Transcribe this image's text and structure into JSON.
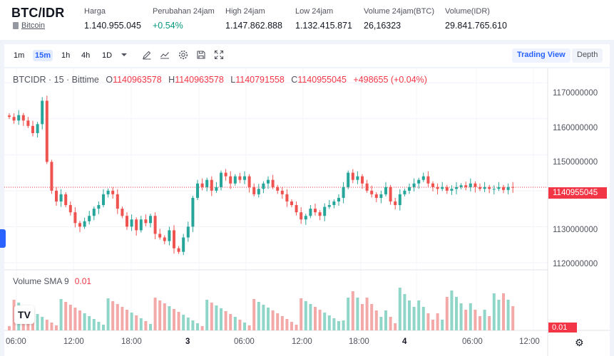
{
  "ticker": {
    "pair": "BTC/IDR",
    "coin_link": "Bitcoin",
    "stats": [
      {
        "label": "Harga",
        "value": "1.140.955.045"
      },
      {
        "label": "Perubahan 24jam",
        "value": "+0.54%"
      },
      {
        "label": "High 24jam",
        "value": "1.147.862.888"
      },
      {
        "label": "Low 24jam",
        "value": "1.132.415.871"
      },
      {
        "label": "Volume 24jam(BTC)",
        "value": "26,16323"
      },
      {
        "label": "Volume(IDR)",
        "value": "29.841.765.610"
      }
    ]
  },
  "toolbar": {
    "intervals": [
      "1m",
      "15m",
      "1h",
      "4h",
      "1D"
    ],
    "active_interval": "15m",
    "icons": [
      "chevron-down-icon",
      "pencil-icon",
      "line-chart-icon",
      "gear-icon",
      "save-icon",
      "fullscreen-icon"
    ],
    "trading_view": "Trading View",
    "depth": "Depth"
  },
  "legend": {
    "symbol": "BTCIDR · 15 · Bittime",
    "o_label": "O",
    "o": "1140963578",
    "h_label": "H",
    "h": "1140963578",
    "l_label": "L",
    "l": "1140791558",
    "c_label": "C",
    "c": "1140955045",
    "change": "+498655 (+0.04%)"
  },
  "volume_legend": {
    "label": "Volume SMA 9",
    "value": "0.01"
  },
  "price_tag": "1140955045",
  "volume_tag": "0.01",
  "y_ticks": [
    "1170000000",
    "1160000000",
    "1150000000",
    "1140000000",
    "1130000000",
    "1120000000"
  ],
  "x_ticks": [
    "06:00",
    "12:00",
    "18:00",
    "3",
    "06:00",
    "12:00",
    "18:00",
    "4",
    "06:00",
    "12:00"
  ],
  "colors": {
    "up": "#26a69a",
    "down": "#ef5350",
    "up_vol": "#8fd6c9",
    "down_vol": "#f2a9a7",
    "accent": "#2962ff"
  },
  "chart_data": {
    "type": "candlestick",
    "ylim": [
      1118000000,
      1174000000
    ],
    "last_price": 1140955045,
    "closes_millions": [
      1160.5,
      1159.5,
      1161,
      1159.5,
      1158,
      1156,
      1158.5,
      1165,
      1148,
      1140,
      1137,
      1139,
      1136,
      1134,
      1131,
      1130,
      1131.5,
      1133,
      1135,
      1136,
      1139,
      1140,
      1139,
      1135,
      1133,
      1130,
      1132,
      1129,
      1132,
      1131,
      1133,
      1128,
      1127,
      1126,
      1129,
      1124,
      1123,
      1127,
      1130,
      1138,
      1142,
      1141,
      1143,
      1140,
      1141,
      1145,
      1144,
      1142,
      1144,
      1143,
      1144,
      1141,
      1139,
      1140.5,
      1142,
      1143,
      1141,
      1140,
      1139,
      1137,
      1136,
      1134,
      1132,
      1133,
      1135,
      1134,
      1133,
      1135.5,
      1136,
      1137,
      1138,
      1141,
      1145,
      1143,
      1144,
      1142,
      1140,
      1139,
      1138,
      1139,
      1141,
      1137,
      1136,
      1139,
      1140,
      1141,
      1142,
      1143,
      1144,
      1142,
      1141,
      1140.5,
      1141,
      1140,
      1140.5,
      1141,
      1141.5,
      1141,
      1142,
      1141,
      1140.5,
      1141,
      1140.5,
      1140.5,
      1141,
      1140.2,
      1141,
      1140.9
    ]
  }
}
